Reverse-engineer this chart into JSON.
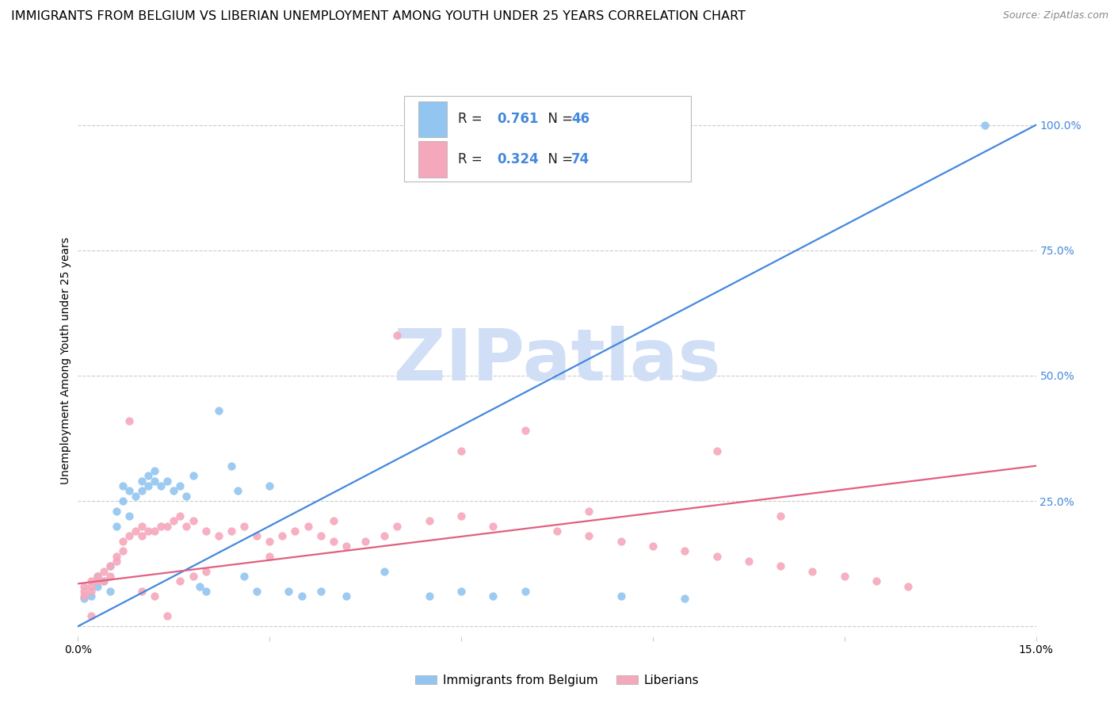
{
  "title": "IMMIGRANTS FROM BELGIUM VS LIBERIAN UNEMPLOYMENT AMONG YOUTH UNDER 25 YEARS CORRELATION CHART",
  "source": "Source: ZipAtlas.com",
  "ylabel": "Unemployment Among Youth under 25 years",
  "xlim": [
    0.0,
    0.15
  ],
  "ylim": [
    -0.02,
    1.08
  ],
  "blue_color": "#92c5f0",
  "pink_color": "#f5a8bc",
  "blue_line_color": "#4488dd",
  "pink_line_color": "#e06080",
  "blue_R": "0.761",
  "blue_N": "46",
  "pink_R": "0.324",
  "pink_N": "74",
  "watermark": "ZIPatlas",
  "watermark_color": "#d0dff5",
  "legend_label_blue": "Immigrants from Belgium",
  "legend_label_pink": "Liberians",
  "title_fontsize": 11.5,
  "axis_label_fontsize": 10,
  "tick_fontsize": 10,
  "right_tick_color": "#4488dd",
  "blue_scatter_x": [
    0.001,
    0.002,
    0.003,
    0.003,
    0.004,
    0.005,
    0.005,
    0.006,
    0.006,
    0.007,
    0.007,
    0.008,
    0.008,
    0.009,
    0.01,
    0.01,
    0.011,
    0.011,
    0.012,
    0.012,
    0.013,
    0.014,
    0.015,
    0.016,
    0.017,
    0.018,
    0.019,
    0.02,
    0.022,
    0.024,
    0.025,
    0.026,
    0.028,
    0.03,
    0.033,
    0.035,
    0.038,
    0.042,
    0.048,
    0.055,
    0.06,
    0.065,
    0.07,
    0.085,
    0.095,
    0.142
  ],
  "blue_scatter_y": [
    0.055,
    0.06,
    0.08,
    0.1,
    0.09,
    0.07,
    0.12,
    0.2,
    0.23,
    0.25,
    0.28,
    0.22,
    0.27,
    0.26,
    0.29,
    0.27,
    0.3,
    0.28,
    0.29,
    0.31,
    0.28,
    0.29,
    0.27,
    0.28,
    0.26,
    0.3,
    0.08,
    0.07,
    0.43,
    0.32,
    0.27,
    0.1,
    0.07,
    0.28,
    0.07,
    0.06,
    0.07,
    0.06,
    0.11,
    0.06,
    0.07,
    0.06,
    0.07,
    0.06,
    0.055,
    1.0
  ],
  "pink_scatter_x": [
    0.001,
    0.001,
    0.001,
    0.002,
    0.002,
    0.002,
    0.003,
    0.003,
    0.004,
    0.004,
    0.005,
    0.005,
    0.006,
    0.006,
    0.007,
    0.007,
    0.008,
    0.008,
    0.009,
    0.01,
    0.01,
    0.011,
    0.012,
    0.013,
    0.014,
    0.015,
    0.016,
    0.017,
    0.018,
    0.02,
    0.022,
    0.024,
    0.026,
    0.028,
    0.03,
    0.032,
    0.034,
    0.036,
    0.038,
    0.04,
    0.042,
    0.045,
    0.048,
    0.05,
    0.055,
    0.06,
    0.065,
    0.07,
    0.075,
    0.08,
    0.085,
    0.09,
    0.095,
    0.1,
    0.105,
    0.11,
    0.115,
    0.12,
    0.125,
    0.13,
    0.05,
    0.06,
    0.08,
    0.1,
    0.11,
    0.04,
    0.03,
    0.02,
    0.018,
    0.016,
    0.01,
    0.012,
    0.014,
    0.002
  ],
  "pink_scatter_y": [
    0.06,
    0.07,
    0.08,
    0.07,
    0.09,
    0.08,
    0.09,
    0.1,
    0.11,
    0.09,
    0.12,
    0.1,
    0.13,
    0.14,
    0.15,
    0.17,
    0.41,
    0.18,
    0.19,
    0.18,
    0.2,
    0.19,
    0.19,
    0.2,
    0.2,
    0.21,
    0.22,
    0.2,
    0.21,
    0.19,
    0.18,
    0.19,
    0.2,
    0.18,
    0.17,
    0.18,
    0.19,
    0.2,
    0.18,
    0.17,
    0.16,
    0.17,
    0.18,
    0.2,
    0.21,
    0.22,
    0.2,
    0.39,
    0.19,
    0.18,
    0.17,
    0.16,
    0.15,
    0.14,
    0.13,
    0.12,
    0.11,
    0.1,
    0.09,
    0.08,
    0.58,
    0.35,
    0.23,
    0.35,
    0.22,
    0.21,
    0.14,
    0.11,
    0.1,
    0.09,
    0.07,
    0.06,
    0.02,
    0.02
  ],
  "blue_line_x": [
    0.0,
    0.15
  ],
  "blue_line_y": [
    0.0,
    1.0
  ],
  "pink_line_x": [
    0.0,
    0.15
  ],
  "pink_line_y": [
    0.085,
    0.32
  ]
}
